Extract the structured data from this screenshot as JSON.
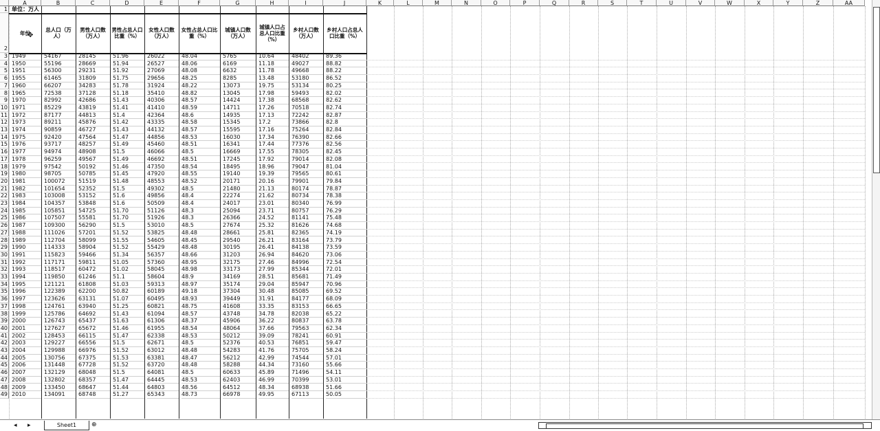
{
  "sheet": {
    "columns": [
      "A",
      "B",
      "C",
      "D",
      "E",
      "F",
      "G",
      "H",
      "I",
      "J",
      "K",
      "L",
      "M",
      "N",
      "O",
      "P",
      "Q",
      "R",
      "S",
      "T",
      "U",
      "V",
      "W",
      "X",
      "Y",
      "Z",
      "AA"
    ],
    "unit_note": "单位：万人",
    "headers": [
      "年份",
      "总人口（万人）",
      "男性人口数（万人）",
      "男性占总人口比重（%）",
      "女性人口数（万人）",
      "女性占总人口比重（%）",
      "城镇人口数（万人）",
      "城镇人口占总人口比重（%）",
      "乡村人口数（万人）",
      "乡村人口占总人口比重（%）"
    ],
    "rows": [
      [
        "1949",
        "54167",
        "28145",
        "51.96",
        "26022",
        "48.04",
        "5765",
        "10.64",
        "48402",
        "89.36"
      ],
      [
        "1950",
        "55196",
        "28669",
        "51.94",
        "26527",
        "48.06",
        "6169",
        "11.18",
        "49027",
        "88.82"
      ],
      [
        "1951",
        "56300",
        "29231",
        "51.92",
        "27069",
        "48.08",
        "6632",
        "11.78",
        "49668",
        "88.22"
      ],
      [
        "1955",
        "61465",
        "31809",
        "51.75",
        "29656",
        "48.25",
        "8285",
        "13.48",
        "53180",
        "86.52"
      ],
      [
        "1960",
        "66207",
        "34283",
        "51.78",
        "31924",
        "48.22",
        "13073",
        "19.75",
        "53134",
        "80.25"
      ],
      [
        "1965",
        "72538",
        "37128",
        "51.18",
        "35410",
        "48.82",
        "13045",
        "17.98",
        "59493",
        "82.02"
      ],
      [
        "1970",
        "82992",
        "42686",
        "51.43",
        "40306",
        "48.57",
        "14424",
        "17.38",
        "68568",
        "82.62"
      ],
      [
        "1971",
        "85229",
        "43819",
        "51.41",
        "41410",
        "48.59",
        "14711",
        "17.26",
        "70518",
        "82.74"
      ],
      [
        "1972",
        "87177",
        "44813",
        "51.4",
        "42364",
        "48.6",
        "14935",
        "17.13",
        "72242",
        "82.87"
      ],
      [
        "1973",
        "89211",
        "45876",
        "51.42",
        "43335",
        "48.58",
        "15345",
        "17.2",
        "73866",
        "82.8"
      ],
      [
        "1974",
        "90859",
        "46727",
        "51.43",
        "44132",
        "48.57",
        "15595",
        "17.16",
        "75264",
        "82.84"
      ],
      [
        "1975",
        "92420",
        "47564",
        "51.47",
        "44856",
        "48.53",
        "16030",
        "17.34",
        "76390",
        "82.66"
      ],
      [
        "1976",
        "93717",
        "48257",
        "51.49",
        "45460",
        "48.51",
        "16341",
        "17.44",
        "77376",
        "82.56"
      ],
      [
        "1977",
        "94974",
        "48908",
        "51.5",
        "46066",
        "48.5",
        "16669",
        "17.55",
        "78305",
        "82.45"
      ],
      [
        "1978",
        "96259",
        "49567",
        "51.49",
        "46692",
        "48.51",
        "17245",
        "17.92",
        "79014",
        "82.08"
      ],
      [
        "1979",
        "97542",
        "50192",
        "51.46",
        "47350",
        "48.54",
        "18495",
        "18.96",
        "79047",
        "81.04"
      ],
      [
        "1980",
        "98705",
        "50785",
        "51.45",
        "47920",
        "48.55",
        "19140",
        "19.39",
        "79565",
        "80.61"
      ],
      [
        "1981",
        "100072",
        "51519",
        "51.48",
        "48553",
        "48.52",
        "20171",
        "20.16",
        "79901",
        "79.84"
      ],
      [
        "1982",
        "101654",
        "52352",
        "51.5",
        "49302",
        "48.5",
        "21480",
        "21.13",
        "80174",
        "78.87"
      ],
      [
        "1983",
        "103008",
        "53152",
        "51.6",
        "49856",
        "48.4",
        "22274",
        "21.62",
        "80734",
        "78.38"
      ],
      [
        "1984",
        "104357",
        "53848",
        "51.6",
        "50509",
        "48.4",
        "24017",
        "23.01",
        "80340",
        "76.99"
      ],
      [
        "1985",
        "105851",
        "54725",
        "51.70",
        "51126",
        "48.3",
        "25094",
        "23.71",
        "80757",
        "76.29"
      ],
      [
        "1986",
        "107507",
        "55581",
        "51.70",
        "51926",
        "48.3",
        "26366",
        "24.52",
        "81141",
        "75.48"
      ],
      [
        "1987",
        "109300",
        "56290",
        "51.5",
        "53010",
        "48.5",
        "27674",
        "25.32",
        "81626",
        "74.68"
      ],
      [
        "1988",
        "111026",
        "57201",
        "51.52",
        "53825",
        "48.48",
        "28661",
        "25.81",
        "82365",
        "74.19"
      ],
      [
        "1989",
        "112704",
        "58099",
        "51.55",
        "54605",
        "48.45",
        "29540",
        "26.21",
        "83164",
        "73.79"
      ],
      [
        "1990",
        "114333",
        "58904",
        "51.52",
        "55429",
        "48.48",
        "30195",
        "26.41",
        "84138",
        "73.59"
      ],
      [
        "1991",
        "115823",
        "59466",
        "51.34",
        "56357",
        "48.66",
        "31203",
        "26.94",
        "84620",
        "73.06"
      ],
      [
        "1992",
        "117171",
        "59811",
        "51.05",
        "57360",
        "48.95",
        "32175",
        "27.46",
        "84996",
        "72.54"
      ],
      [
        "1993",
        "118517",
        "60472",
        "51.02",
        "58045",
        "48.98",
        "33173",
        "27.99",
        "85344",
        "72.01"
      ],
      [
        "1994",
        "119850",
        "61246",
        "51.1",
        "58604",
        "48.9",
        "34169",
        "28.51",
        "85681",
        "71.49"
      ],
      [
        "1995",
        "121121",
        "61808",
        "51.03",
        "59313",
        "48.97",
        "35174",
        "29.04",
        "85947",
        "70.96"
      ],
      [
        "1996",
        "122389",
        "62200",
        "50.82",
        "60189",
        "49.18",
        "37304",
        "30.48",
        "85085",
        "69.52"
      ],
      [
        "1997",
        "123626",
        "63131",
        "51.07",
        "60495",
        "48.93",
        "39449",
        "31.91",
        "84177",
        "68.09"
      ],
      [
        "1998",
        "124761",
        "63940",
        "51.25",
        "60821",
        "48.75",
        "41608",
        "33.35",
        "83153",
        "66.65"
      ],
      [
        "1999",
        "125786",
        "64692",
        "51.43",
        "61094",
        "48.57",
        "43748",
        "34.78",
        "82038",
        "65.22"
      ],
      [
        "2000",
        "126743",
        "65437",
        "51.63",
        "61306",
        "48.37",
        "45906",
        "36.22",
        "80837",
        "63.78"
      ],
      [
        "2001",
        "127627",
        "65672",
        "51.46",
        "61955",
        "48.54",
        "48064",
        "37.66",
        "79563",
        "62.34"
      ],
      [
        "2002",
        "128453",
        "66115",
        "51.47",
        "62338",
        "48.53",
        "50212",
        "39.09",
        "78241",
        "60.91"
      ],
      [
        "2003",
        "129227",
        "66556",
        "51.5",
        "62671",
        "48.5",
        "52376",
        "40.53",
        "76851",
        "59.47"
      ],
      [
        "2004",
        "129988",
        "66976",
        "51.52",
        "63012",
        "48.48",
        "54283",
        "41.76",
        "75705",
        "58.24"
      ],
      [
        "2005",
        "130756",
        "67375",
        "51.53",
        "63381",
        "48.47",
        "56212",
        "42.99",
        "74544",
        "57.01"
      ],
      [
        "2006",
        "131448",
        "67728",
        "51.52",
        "63720",
        "48.48",
        "58288",
        "44.34",
        "73160",
        "55.66"
      ],
      [
        "2007",
        "132129",
        "68048",
        "51.5",
        "64081",
        "48.5",
        "60633",
        "45.89",
        "71496",
        "54.11"
      ],
      [
        "2008",
        "132802",
        "68357",
        "51.47",
        "64445",
        "48.53",
        "62403",
        "46.99",
        "70399",
        "53.01"
      ],
      [
        "2009",
        "133450",
        "68647",
        "51.44",
        "64803",
        "48.56",
        "64512",
        "48.34",
        "68938",
        "51.66"
      ],
      [
        "2010",
        "134091",
        "68748",
        "51.27",
        "65343",
        "48.73",
        "66978",
        "49.95",
        "67113",
        "50.05"
      ]
    ]
  },
  "tabs": {
    "sheet1": "Sheet1",
    "add": "⊕"
  },
  "nav": {
    "prev": "◂",
    "next": "▸"
  }
}
